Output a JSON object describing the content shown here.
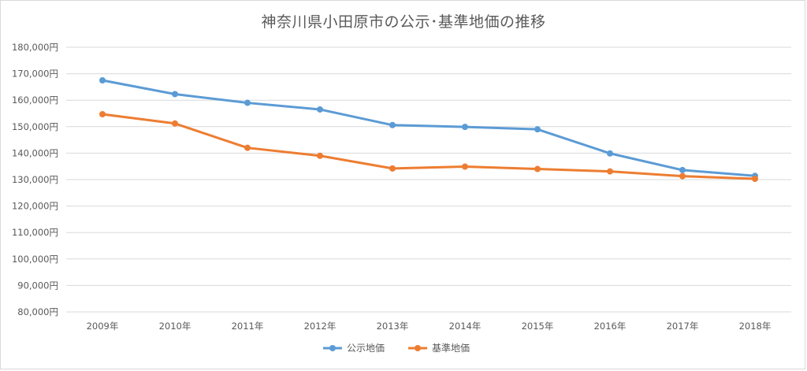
{
  "chart_data": {
    "type": "line",
    "title": "神奈川県小田原市の公示･基準地価の推移",
    "categories": [
      "2009年",
      "2010年",
      "2011年",
      "2012年",
      "2013年",
      "2014年",
      "2015年",
      "2016年",
      "2017年",
      "2018年"
    ],
    "series": [
      {
        "name": "公示地価",
        "color": "#5b9bd5",
        "values": [
          167500,
          162300,
          159000,
          156500,
          150600,
          149900,
          149000,
          139900,
          133600,
          131400
        ]
      },
      {
        "name": "基準地価",
        "color": "#ed7d31",
        "values": [
          154700,
          151200,
          142000,
          139000,
          134200,
          134900,
          134000,
          133100,
          131300,
          130300
        ]
      }
    ],
    "ylim": [
      80000,
      180000
    ],
    "ytick_step": 10000,
    "ytick_suffix": "円",
    "grid": true,
    "legend_position": "bottom"
  }
}
